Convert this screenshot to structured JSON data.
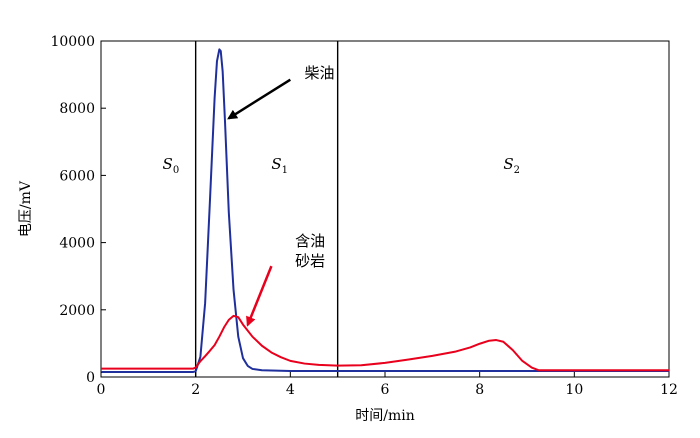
{
  "chart_data": {
    "type": "line",
    "title": "",
    "xlabel": "时间/min",
    "ylabel": "电压/mV",
    "xlim": [
      0,
      12
    ],
    "ylim": [
      0,
      10000
    ],
    "x_ticks": [
      "0",
      "2",
      "4",
      "6",
      "8",
      "10",
      "12"
    ],
    "y_ticks": [
      "0",
      "2000",
      "4000",
      "6000",
      "8000",
      "10000"
    ],
    "grid": false,
    "vertical_lines": [
      2.0,
      5.0
    ],
    "regions": [
      {
        "letter": "S",
        "sub": "0",
        "x": 1.3,
        "y": 5000
      },
      {
        "letter": "S",
        "sub": "1",
        "x": 3.6,
        "y": 5000
      },
      {
        "letter": "S",
        "sub": "2",
        "x": 8.5,
        "y": 5000
      }
    ],
    "annotations": [
      {
        "lines": [
          "柴油"
        ],
        "text_x": 4.3,
        "text_y": 8900,
        "arrow_from": [
          4.0,
          8850
        ],
        "arrow_to": [
          2.7,
          7700
        ],
        "color": "#000000"
      },
      {
        "lines": [
          "含油",
          "砂岩"
        ],
        "text_x": 4.1,
        "text_y": 3900,
        "arrow_from": [
          3.6,
          3300
        ],
        "arrow_to": [
          3.1,
          1550
        ],
        "color": "#e8001c"
      }
    ],
    "series": [
      {
        "name": "柴油",
        "color": "#1f2f9c",
        "x": [
          0,
          1.95,
          2.0,
          2.1,
          2.2,
          2.3,
          2.4,
          2.45,
          2.5,
          2.53,
          2.57,
          2.62,
          2.7,
          2.8,
          2.9,
          3.0,
          3.1,
          3.2,
          3.4,
          3.7,
          4.0,
          5.0,
          6.0,
          8.0,
          10.0,
          12.0
        ],
        "values": [
          150,
          150,
          170,
          600,
          2200,
          5200,
          8300,
          9400,
          9750,
          9700,
          9100,
          7600,
          4900,
          2600,
          1200,
          560,
          330,
          240,
          200,
          190,
          180,
          180,
          180,
          180,
          180,
          180
        ]
      },
      {
        "name": "含油砂岩",
        "color": "#e8001c",
        "x": [
          0,
          1.95,
          2.0,
          2.1,
          2.2,
          2.3,
          2.4,
          2.5,
          2.6,
          2.7,
          2.8,
          2.9,
          3.0,
          3.2,
          3.4,
          3.6,
          3.8,
          4.0,
          4.3,
          4.6,
          5.0,
          5.5,
          6.0,
          6.5,
          7.0,
          7.5,
          7.8,
          8.0,
          8.2,
          8.35,
          8.5,
          8.7,
          8.9,
          9.1,
          9.25,
          9.4,
          10.0,
          11.0,
          12.0
        ],
        "values": [
          250,
          250,
          280,
          470,
          620,
          780,
          950,
          1200,
          1480,
          1700,
          1820,
          1780,
          1560,
          1200,
          930,
          730,
          590,
          480,
          400,
          360,
          340,
          350,
          420,
          520,
          630,
          760,
          880,
          990,
          1080,
          1100,
          1050,
          800,
          480,
          280,
          200,
          200,
          200,
          200,
          200
        ]
      }
    ]
  }
}
